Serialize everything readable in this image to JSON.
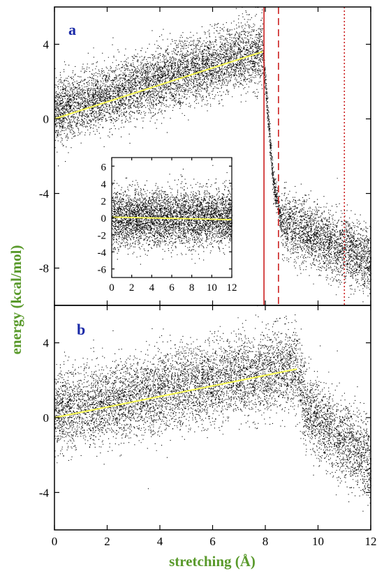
{
  "colors": {
    "axis_title": "#5a9a2c",
    "panel_letter": "#1a2aa8",
    "fit_line": "#ffff55",
    "marker_lines": "#cc1f1f",
    "noise": "#000000"
  },
  "chart_data": [
    {
      "id": "a",
      "type": "scatter",
      "panel_label": "a",
      "xlim": [
        0,
        12
      ],
      "ylim": [
        -10,
        6
      ],
      "y_ticks": [
        4,
        0,
        -4,
        -8
      ],
      "fit_line": {
        "x": [
          0,
          7.9
        ],
        "y": [
          0.0,
          3.6
        ]
      },
      "vertical_lines": [
        {
          "x": 7.95,
          "style": "solid"
        },
        {
          "x": 8.5,
          "style": "dashed"
        },
        {
          "x": 11.0,
          "style": "dotted"
        }
      ],
      "noise_profile": [
        {
          "x": 0.0,
          "mean": 0.4
        },
        {
          "x": 7.9,
          "mean": 3.7
        },
        {
          "x": 8.3,
          "mean": -3.5
        },
        {
          "x": 8.6,
          "mean": -5.5
        },
        {
          "x": 12.0,
          "mean": -7.6
        }
      ],
      "inset": {
        "type": "scatter",
        "xlim": [
          0,
          12
        ],
        "ylim": [
          -7,
          7
        ],
        "x_ticks": [
          0,
          2,
          4,
          6,
          8,
          10,
          12
        ],
        "y_ticks": [
          6,
          4,
          2,
          0,
          -2,
          -4,
          -6
        ],
        "fit_line": {
          "x": [
            0,
            12
          ],
          "y": [
            0.05,
            -0.25
          ]
        }
      }
    },
    {
      "id": "b",
      "type": "scatter",
      "panel_label": "b",
      "xlim": [
        0,
        12
      ],
      "ylim": [
        -6,
        6
      ],
      "y_ticks": [
        4,
        0,
        -4
      ],
      "x_ticks": [
        0,
        2,
        4,
        6,
        8,
        10,
        12
      ],
      "xlabel": "stretching (Å)",
      "fit_line": {
        "x": [
          0,
          9.2
        ],
        "y": [
          0.0,
          2.6
        ]
      },
      "noise_profile": [
        {
          "x": 0.0,
          "mean": 0.3
        },
        {
          "x": 9.2,
          "mean": 2.8
        },
        {
          "x": 9.5,
          "mean": 0.5
        },
        {
          "x": 12.0,
          "mean": -2.4
        }
      ]
    }
  ],
  "ylabel": "energy (kcal/mol)"
}
